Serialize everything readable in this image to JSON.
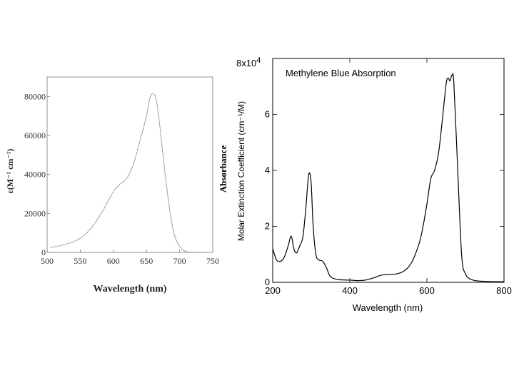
{
  "chart_data": [
    {
      "type": "line",
      "title": "",
      "xlabel": "Wavelength (nm)",
      "ylabel": "ε(M⁻¹ cm⁻¹)",
      "xlim": [
        500,
        750
      ],
      "ylim": [
        0,
        90000
      ],
      "x_ticks": [
        500,
        550,
        600,
        650,
        700,
        750
      ],
      "y_ticks": [
        0,
        20000,
        40000,
        60000,
        80000
      ],
      "x_tick_labels": [
        "500",
        "550",
        "600",
        "650",
        "700",
        "750"
      ],
      "y_tick_labels": [
        "0",
        "20000",
        "40000",
        "60000",
        "80000"
      ],
      "grid": false,
      "series": [
        {
          "x": [
            505,
            520,
            540,
            555,
            570,
            585,
            600,
            610,
            620,
            630,
            640,
            650,
            655,
            660,
            665,
            670,
            680,
            690,
            700,
            710,
            720,
            735
          ],
          "y": [
            2500,
            3500,
            5500,
            8500,
            14000,
            22000,
            31000,
            35000,
            38000,
            45000,
            57000,
            70000,
            79000,
            81500,
            78000,
            65000,
            35000,
            12000,
            3000,
            500,
            0,
            0
          ]
        }
      ]
    },
    {
      "type": "line",
      "title": "Methylene Blue Absorption",
      "xlabel": "Wavelength (nm)",
      "ylabel": "Molar Extinction Coefficient (cm⁻¹/M)",
      "ylabel_secondary": "Absorbance",
      "y_multiplier_label": "8x10",
      "y_multiplier_exponent": "4",
      "xlim": [
        200,
        800
      ],
      "ylim": [
        0,
        80000
      ],
      "x_ticks": [
        200,
        400,
        600,
        800
      ],
      "x_tick_labels": [
        "200",
        "400",
        "600",
        "800"
      ],
      "y_ticks": [
        0,
        20000,
        40000,
        60000
      ],
      "y_tick_labels": [
        "0",
        "2",
        "4",
        "6"
      ],
      "grid": false,
      "series": [
        {
          "x": [
            200,
            210,
            220,
            230,
            240,
            248,
            255,
            262,
            270,
            278,
            285,
            292,
            296,
            300,
            305,
            312,
            320,
            330,
            340,
            350,
            370,
            400,
            420,
            440,
            460,
            480,
            500,
            520,
            540,
            560,
            580,
            590,
            600,
            610,
            620,
            630,
            640,
            650,
            655,
            660,
            665,
            670,
            680,
            690,
            700,
            720,
            760,
            800
          ],
          "y": [
            12000,
            8000,
            7500,
            9000,
            13000,
            16500,
            12000,
            10500,
            13000,
            16000,
            25000,
            37000,
            39000,
            35000,
            20000,
            10000,
            8000,
            7500,
            5000,
            2000,
            1000,
            800,
            600,
            800,
            1500,
            2500,
            2800,
            3000,
            4000,
            7000,
            14000,
            20000,
            28000,
            37000,
            40000,
            46000,
            58000,
            71000,
            73000,
            72000,
            74000,
            71000,
            40000,
            10000,
            3000,
            800,
            300,
            200
          ]
        }
      ]
    }
  ]
}
